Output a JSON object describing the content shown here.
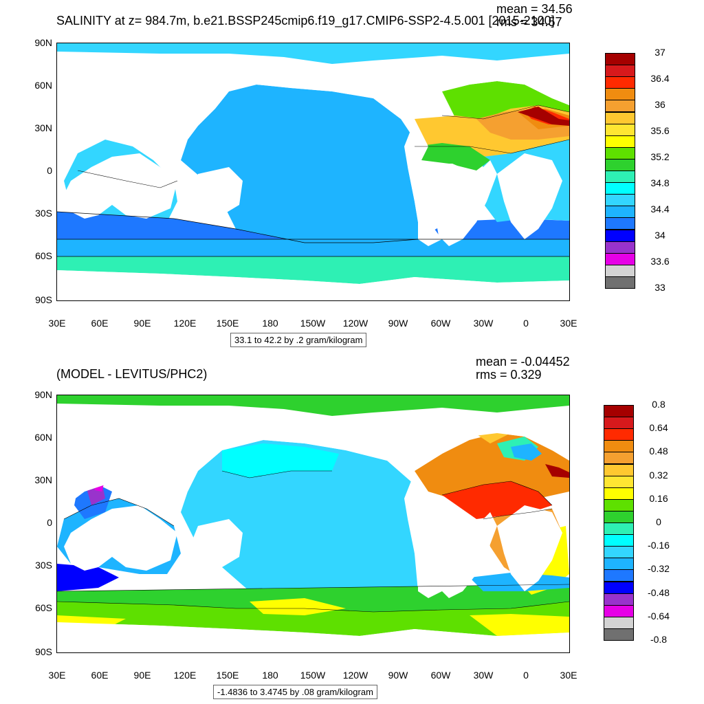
{
  "top": {
    "title": "SALINITY at z= 984.7m, b.e21.BSSP245cmip6.f19_g17.CMIP6-SSP2-4.5.001 [2015-2100]",
    "mean": "mean = 34.56",
    "rms": "rms = 34.57",
    "contour_info": "33.1 to 42.2 by .2 gram/kilogram",
    "lat_labels": [
      "90N",
      "60N",
      "30N",
      "0",
      "30S",
      "60S",
      "90S"
    ],
    "lon_labels": [
      "30E",
      "60E",
      "90E",
      "120E",
      "150E",
      "180",
      "150W",
      "120W",
      "90W",
      "60W",
      "30W",
      "0",
      "30E"
    ],
    "colorbar_colors": [
      "#a50000",
      "#d7191c",
      "#ff2a00",
      "#f08c10",
      "#f5a030",
      "#ffc830",
      "#ffe632",
      "#ffff00",
      "#5ee000",
      "#2ed12e",
      "#2ef0b4",
      "#00ffff",
      "#33d6ff",
      "#1eb4ff",
      "#1e78ff",
      "#0000ff",
      "#9933cc",
      "#e600e6",
      "#d3d3d3",
      "#707070"
    ],
    "colorbar_labels": [
      "37",
      "36.4",
      "36",
      "35.6",
      "35.2",
      "34.8",
      "34.4",
      "34",
      "33.6",
      "33"
    ]
  },
  "bottom": {
    "title": "(MODEL - LEVITUS/PHC2)",
    "mean": "mean = -0.04452",
    "rms": "rms = 0.329",
    "contour_info": "-1.4836 to 3.4745 by .08 gram/kilogram",
    "lat_labels": [
      "90N",
      "60N",
      "30N",
      "0",
      "30S",
      "60S",
      "90S"
    ],
    "lon_labels": [
      "30E",
      "60E",
      "90E",
      "120E",
      "150E",
      "180",
      "150W",
      "120W",
      "90W",
      "60W",
      "30W",
      "0",
      "30E"
    ],
    "colorbar_colors": [
      "#a50000",
      "#d7191c",
      "#ff2a00",
      "#f08c10",
      "#f5a030",
      "#ffc830",
      "#ffe632",
      "#ffff00",
      "#5ee000",
      "#2ed12e",
      "#2ef0b4",
      "#00ffff",
      "#33d6ff",
      "#1eb4ff",
      "#1e78ff",
      "#0000ff",
      "#9933cc",
      "#e600e6",
      "#d3d3d3",
      "#707070"
    ],
    "colorbar_labels": [
      "0.8",
      "0.64",
      "0.48",
      "0.32",
      "0.16",
      "0",
      "-0.16",
      "-0.32",
      "-0.48",
      "-0.64",
      "-0.8"
    ]
  }
}
